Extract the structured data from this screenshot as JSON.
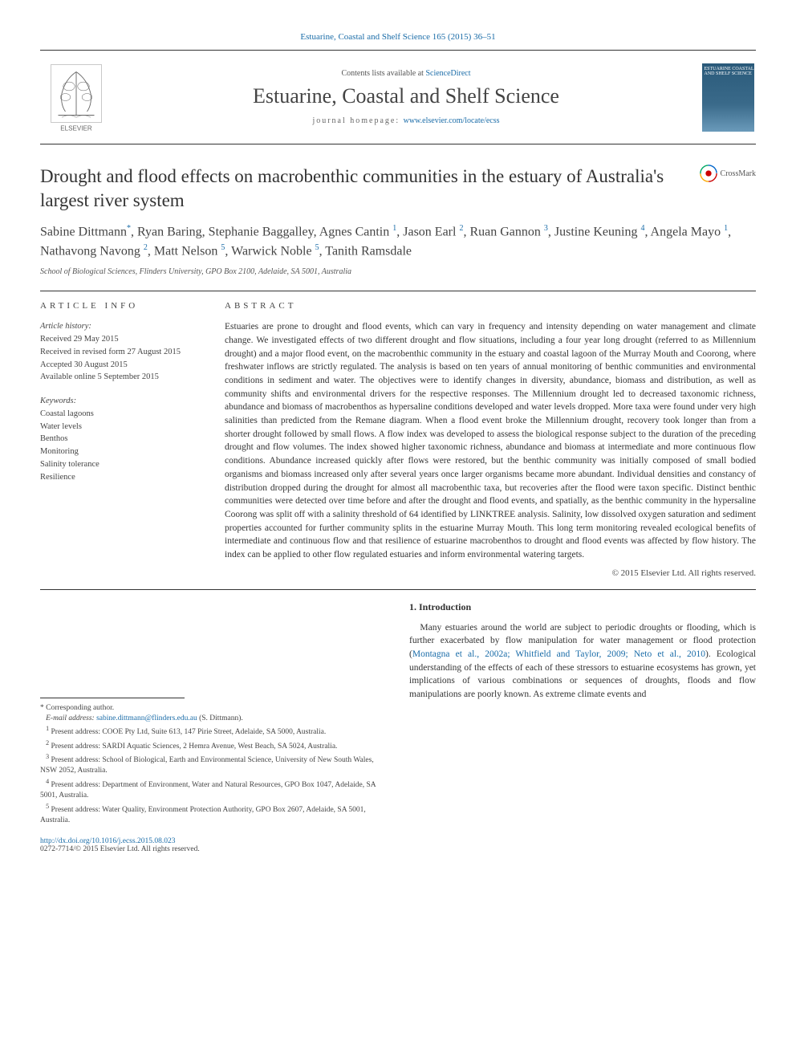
{
  "top_citation": "Estuarine, Coastal and Shelf Science 165 (2015) 36–51",
  "banner": {
    "contents_prefix": "Contents lists available at ",
    "contents_link": "ScienceDirect",
    "journal_name": "Estuarine, Coastal and Shelf Science",
    "home_prefix": "journal homepage: ",
    "home_link": "www.elsevier.com/locate/ecss",
    "publisher": "ELSEVIER",
    "cover_text": "ESTUARINE COASTAL AND SHELF SCIENCE"
  },
  "title": "Drought and flood effects on macrobenthic communities in the estuary of Australia's largest river system",
  "crossmark": "CrossMark",
  "authors_html": "Sabine Dittmann<sup class='corr-star'>*</sup>, Ryan Baring, Stephanie Baggalley, Agnes Cantin <sup>1</sup>, Jason Earl <sup>2</sup>, Ruan Gannon <sup>3</sup>, Justine Keuning <sup>4</sup>, Angela Mayo <sup>1</sup>, Nathavong Navong <sup>2</sup>, Matt Nelson <sup>5</sup>, Warwick Noble <sup>5</sup>, Tanith Ramsdale",
  "affiliation": "School of Biological Sciences, Flinders University, GPO Box 2100, Adelaide, SA 5001, Australia",
  "article_info_head": "ARTICLE INFO",
  "abstract_head": "ABSTRACT",
  "history": {
    "label": "Article history:",
    "received": "Received 29 May 2015",
    "revised": "Received in revised form 27 August 2015",
    "accepted": "Accepted 30 August 2015",
    "online": "Available online 5 September 2015"
  },
  "keywords": {
    "label": "Keywords:",
    "items": [
      "Coastal lagoons",
      "Water levels",
      "Benthos",
      "Monitoring",
      "Salinity tolerance",
      "Resilience"
    ]
  },
  "abstract": "Estuaries are prone to drought and flood events, which can vary in frequency and intensity depending on water management and climate change. We investigated effects of two different drought and flow situations, including a four year long drought (referred to as Millennium drought) and a major flood event, on the macrobenthic community in the estuary and coastal lagoon of the Murray Mouth and Coorong, where freshwater inflows are strictly regulated. The analysis is based on ten years of annual monitoring of benthic communities and environmental conditions in sediment and water. The objectives were to identify changes in diversity, abundance, biomass and distribution, as well as community shifts and environmental drivers for the respective responses. The Millennium drought led to decreased taxonomic richness, abundance and biomass of macrobenthos as hypersaline conditions developed and water levels dropped. More taxa were found under very high salinities than predicted from the Remane diagram. When a flood event broke the Millennium drought, recovery took longer than from a shorter drought followed by small flows. A flow index was developed to assess the biological response subject to the duration of the preceding drought and flow volumes. The index showed higher taxonomic richness, abundance and biomass at intermediate and more continuous flow conditions. Abundance increased quickly after flows were restored, but the benthic community was initially composed of small bodied organisms and biomass increased only after several years once larger organisms became more abundant. Individual densities and constancy of distribution dropped during the drought for almost all macrobenthic taxa, but recoveries after the flood were taxon specific. Distinct benthic communities were detected over time before and after the drought and flood events, and spatially, as the benthic community in the hypersaline Coorong was split off with a salinity threshold of 64 identified by LINKTREE analysis. Salinity, low dissolved oxygen saturation and sediment properties accounted for further community splits in the estuarine Murray Mouth. This long term monitoring revealed ecological benefits of intermediate and continuous flow and that resilience of estuarine macrobenthos to drought and flood events was affected by flow history. The index can be applied to other flow regulated estuaries and inform environmental watering targets.",
  "copyright": "© 2015 Elsevier Ltd. All rights reserved.",
  "footnotes": {
    "corr": "* Corresponding author.",
    "email_label": "E-mail address: ",
    "email": "sabine.dittmann@flinders.edu.au",
    "email_suffix": " (S. Dittmann).",
    "items": [
      "Present address: COOE Pty Ltd, Suite 613, 147 Pirie Street, Adelaide, SA 5000, Australia.",
      "Present address: SARDI Aquatic Sciences, 2 Hemra Avenue, West Beach, SA 5024, Australia.",
      "Present address: School of Biological, Earth and Environmental Science, University of New South Wales, NSW 2052, Australia.",
      "Present address: Department of Environment, Water and Natural Resources, GPO Box 1047, Adelaide, SA 5001, Australia.",
      "Present address: Water Quality, Environment Protection Authority, GPO Box 2607, Adelaide, SA 5001, Australia."
    ]
  },
  "intro": {
    "head": "1. Introduction",
    "para": "Many estuaries around the world are subject to periodic droughts or flooding, which is further exacerbated by flow manipulation for water management or flood protection (",
    "cite": "Montagna et al., 2002a; Whitfield and Taylor, 2009; Neto et al., 2010",
    "para2": "). Ecological understanding of the effects of each of these stressors to estuarine ecosystems has grown, yet implications of various combinations or sequences of droughts, floods and flow manipulations are poorly known. As extreme climate events and"
  },
  "doi": "http://dx.doi.org/10.1016/j.ecss.2015.08.023",
  "issn": "0272-7714/© 2015 Elsevier Ltd. All rights reserved.",
  "colors": {
    "link": "#1a6ca8",
    "text": "#333333",
    "muted": "#555555",
    "orange": "#ff6600"
  }
}
